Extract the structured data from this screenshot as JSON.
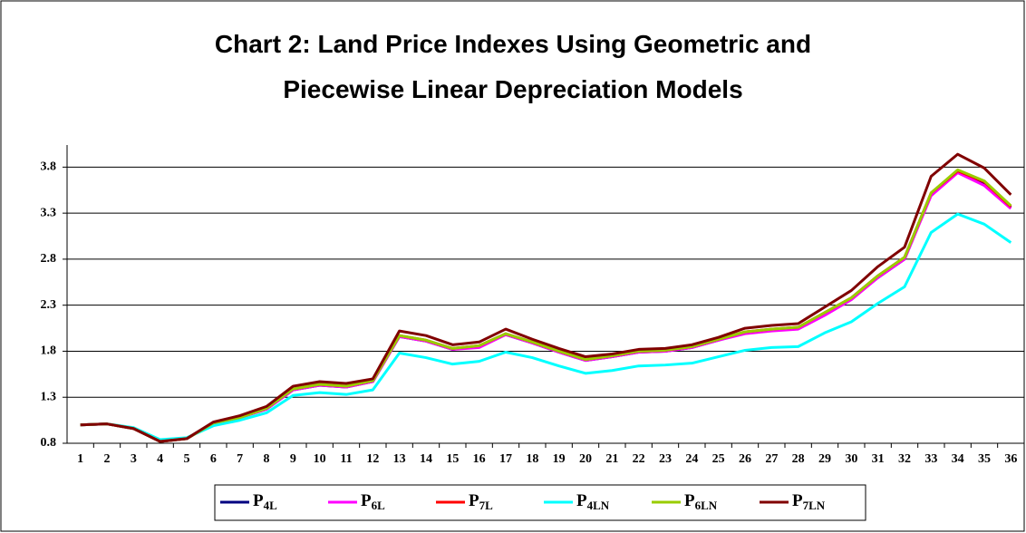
{
  "chart_data": {
    "type": "line",
    "title": "Chart 2: Land Price Indexes Using Geometric and Piecewise Linear Depreciation Models",
    "categories": [
      "1",
      "2",
      "3",
      "4",
      "5",
      "6",
      "7",
      "8",
      "9",
      "10",
      "11",
      "12",
      "13",
      "14",
      "15",
      "16",
      "17",
      "18",
      "19",
      "20",
      "21",
      "22",
      "23",
      "24",
      "25",
      "26",
      "27",
      "28",
      "29",
      "30",
      "31",
      "32",
      "33",
      "34",
      "35",
      "36"
    ],
    "ylim": [
      0.8,
      4.04
    ],
    "yticks": [
      0.8,
      1.3,
      1.8,
      2.3,
      2.8,
      3.3,
      3.8
    ],
    "grid": true,
    "legend": "bottom",
    "series": [
      {
        "name": "P4L",
        "color": "#000080",
        "values": [
          1.0,
          1.01,
          0.96,
          0.82,
          0.85,
          1.02,
          1.08,
          1.17,
          1.38,
          1.43,
          1.41,
          1.47,
          1.96,
          1.91,
          1.82,
          1.85,
          1.98,
          1.89,
          1.79,
          1.7,
          1.74,
          1.79,
          1.8,
          1.84,
          1.92,
          2.0,
          2.03,
          2.05,
          2.2,
          2.37,
          2.6,
          2.8,
          3.5,
          3.75,
          3.62,
          3.36
        ]
      },
      {
        "name": "P6L",
        "color": "#ff00ff",
        "values": [
          1.0,
          1.01,
          0.96,
          0.82,
          0.85,
          1.02,
          1.08,
          1.17,
          1.38,
          1.43,
          1.41,
          1.47,
          1.96,
          1.91,
          1.82,
          1.84,
          1.98,
          1.89,
          1.79,
          1.7,
          1.74,
          1.79,
          1.8,
          1.84,
          1.92,
          1.99,
          2.02,
          2.04,
          2.19,
          2.36,
          2.6,
          2.8,
          3.49,
          3.74,
          3.6,
          3.35
        ]
      },
      {
        "name": "P7L",
        "color": "#ff0000",
        "values": [
          1.0,
          1.01,
          0.96,
          0.82,
          0.85,
          1.02,
          1.08,
          1.18,
          1.39,
          1.44,
          1.42,
          1.48,
          1.97,
          1.92,
          1.83,
          1.86,
          1.99,
          1.9,
          1.8,
          1.71,
          1.75,
          1.8,
          1.81,
          1.85,
          1.93,
          2.01,
          2.04,
          2.06,
          2.22,
          2.38,
          2.62,
          2.82,
          3.52,
          3.76,
          3.64,
          3.37
        ]
      },
      {
        "name": "P4LN",
        "color": "#00ffff",
        "values": [
          1.0,
          1.01,
          0.97,
          0.84,
          0.86,
          0.99,
          1.05,
          1.13,
          1.32,
          1.35,
          1.33,
          1.38,
          1.78,
          1.73,
          1.66,
          1.69,
          1.79,
          1.73,
          1.64,
          1.56,
          1.59,
          1.64,
          1.65,
          1.67,
          1.74,
          1.81,
          1.84,
          1.85,
          2.0,
          2.12,
          2.32,
          2.5,
          3.09,
          3.29,
          3.18,
          2.98
        ]
      },
      {
        "name": "P6LN",
        "color": "#99cc00",
        "values": [
          1.0,
          1.01,
          0.96,
          0.82,
          0.85,
          1.02,
          1.08,
          1.18,
          1.39,
          1.44,
          1.42,
          1.48,
          1.97,
          1.92,
          1.83,
          1.86,
          1.99,
          1.9,
          1.8,
          1.71,
          1.75,
          1.8,
          1.81,
          1.85,
          1.93,
          2.01,
          2.04,
          2.06,
          2.22,
          2.38,
          2.62,
          2.82,
          3.52,
          3.77,
          3.65,
          3.38
        ]
      },
      {
        "name": "P7LN",
        "color": "#800000",
        "values": [
          1.0,
          1.01,
          0.96,
          0.82,
          0.85,
          1.03,
          1.1,
          1.2,
          1.42,
          1.47,
          1.45,
          1.5,
          2.02,
          1.97,
          1.87,
          1.9,
          2.04,
          1.93,
          1.83,
          1.74,
          1.77,
          1.82,
          1.83,
          1.87,
          1.95,
          2.05,
          2.08,
          2.1,
          2.28,
          2.46,
          2.72,
          2.93,
          3.7,
          3.94,
          3.79,
          3.5
        ]
      }
    ]
  }
}
